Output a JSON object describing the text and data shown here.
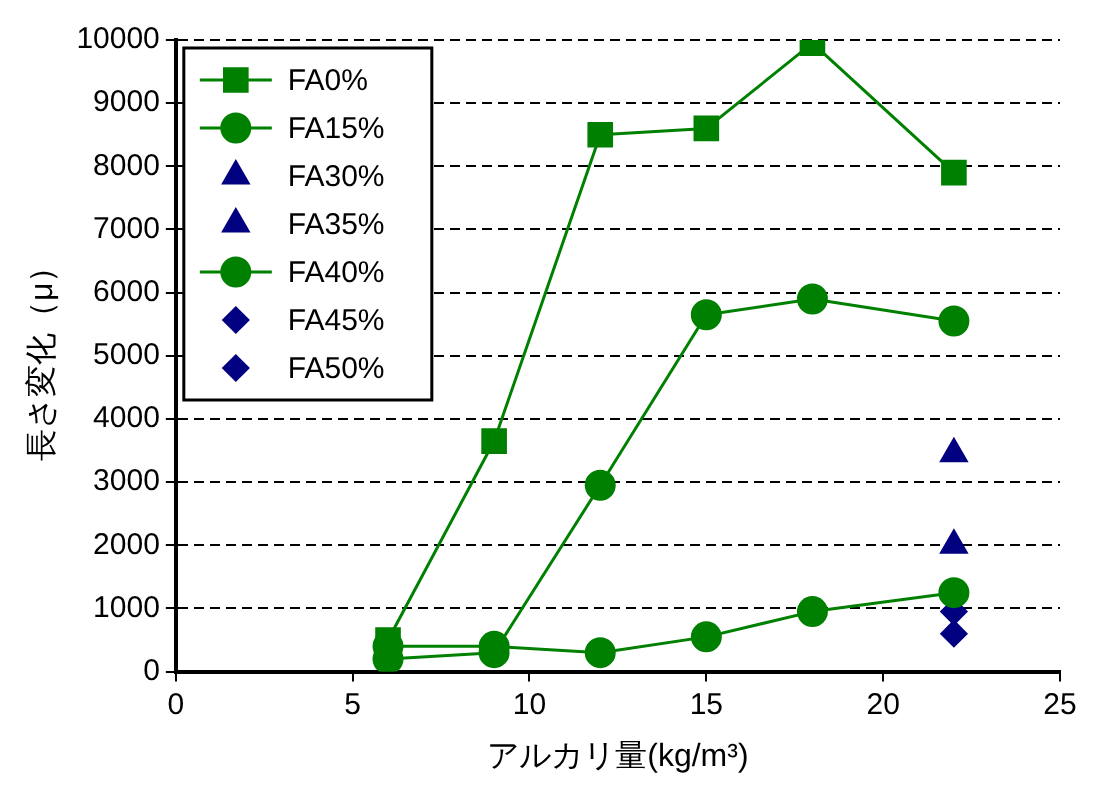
{
  "chart_data": {
    "type": "line",
    "xlabel": "アルカリ量(kg/m³)",
    "ylabel": "長さ変化（μ）",
    "xlim": [
      0,
      25
    ],
    "xticks": [
      0,
      5,
      10,
      15,
      20,
      25
    ],
    "ylim": [
      0,
      10000
    ],
    "yticks": [
      0,
      1000,
      2000,
      3000,
      4000,
      5000,
      6000,
      7000,
      8000,
      9000,
      10000
    ],
    "grid": "y",
    "legend": "top left",
    "series": [
      {
        "name": "FA0%",
        "type": "line",
        "marker": "square",
        "color": "#008000",
        "x": [
          6,
          9,
          12,
          15,
          18,
          22
        ],
        "values": [
          500,
          3650,
          8500,
          8600,
          9950,
          7900
        ]
      },
      {
        "name": "FA15%",
        "type": "line",
        "marker": "circle",
        "color": "#008000",
        "x": [
          6,
          9,
          12,
          15,
          18,
          22
        ],
        "values": [
          200,
          300,
          2950,
          5650,
          5900,
          5550
        ]
      },
      {
        "name": "FA30%",
        "type": "scatter",
        "marker": "triangle",
        "color": "#000080",
        "x": [
          22
        ],
        "values": [
          3450
        ]
      },
      {
        "name": "FA35%",
        "type": "scatter",
        "marker": "triangle",
        "color": "#000080",
        "x": [
          22
        ],
        "values": [
          2000
        ]
      },
      {
        "name": "FA40%",
        "type": "line",
        "marker": "circle",
        "color": "#008000",
        "x": [
          6,
          9,
          12,
          15,
          18,
          22
        ],
        "values": [
          400,
          400,
          300,
          550,
          950,
          1250
        ]
      },
      {
        "name": "FA45%",
        "type": "scatter",
        "marker": "diamond",
        "color": "#000080",
        "x": [
          22
        ],
        "values": [
          950
        ]
      },
      {
        "name": "FA50%",
        "type": "scatter",
        "marker": "diamond",
        "color": "#000080",
        "x": [
          22
        ],
        "values": [
          600
        ]
      }
    ]
  }
}
